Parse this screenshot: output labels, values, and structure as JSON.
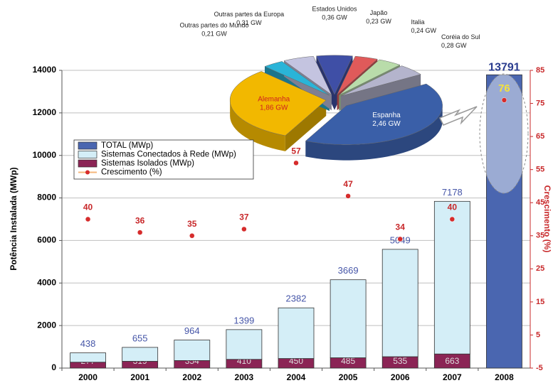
{
  "chart_data": [
    {
      "type": "bar",
      "categories": [
        "2000",
        "2001",
        "2002",
        "2003",
        "2004",
        "2005",
        "2006",
        "2007",
        "2008"
      ],
      "ylabel": "Potência Instalada (MWp)",
      "y2label": "Crescimento (%)",
      "ylim": [
        0,
        14000
      ],
      "yticks": [
        0,
        2000,
        4000,
        6000,
        8000,
        10000,
        12000,
        14000
      ],
      "y2lim": [
        -5,
        85
      ],
      "y2ticks": [
        -5,
        5,
        15,
        25,
        35,
        45,
        55,
        65,
        75,
        85
      ],
      "series": [
        {
          "name": "TOTAL (MWp)",
          "type": "bar",
          "color": "#4a66b0",
          "values": [
            null,
            null,
            null,
            null,
            null,
            null,
            null,
            null,
            13791
          ]
        },
        {
          "name": "Sistemas Conectados à Rede (MWp)",
          "type": "bar",
          "color": "#d4eef7",
          "values": [
            438,
            655,
            964,
            1399,
            2382,
            3669,
            5049,
            7178,
            null
          ]
        },
        {
          "name": "Sistemas Isolados (MWp)",
          "type": "bar",
          "color": "#8b2455",
          "values": [
            277,
            319,
            354,
            410,
            450,
            485,
            535,
            663,
            null
          ]
        },
        {
          "name": "Crescimento (%)",
          "type": "line",
          "axis": "y2",
          "color": "#f5b57a",
          "marker_color": "#d62c2c",
          "values": [
            40,
            36,
            35,
            37,
            57,
            47,
            34,
            40,
            76
          ]
        }
      ]
    },
    {
      "type": "pie",
      "categories": [
        "Estados  Unidos",
        "Japão",
        "Italia",
        "Coréia do Sul",
        "Espanha",
        "Alemanha",
        "Outras partes do Mundo",
        "Outras partes da Europa"
      ],
      "values": [
        0.36,
        0.23,
        0.24,
        0.28,
        2.46,
        1.86,
        0.21,
        0.31
      ],
      "value_labels": [
        "0,36 GW",
        "0,23 GW",
        "0,24 GW",
        "0,28 GW",
        "2,46 GW",
        "1,86 GW",
        "0,21 GW",
        "0,31 GW"
      ],
      "colors": [
        "#3f4fa6",
        "#e05a5a",
        "#b9dcaa",
        "#b4b4cc",
        "#3a5fa8",
        "#f2b800",
        "#2ab4d8",
        "#c4c4e0"
      ]
    }
  ]
}
